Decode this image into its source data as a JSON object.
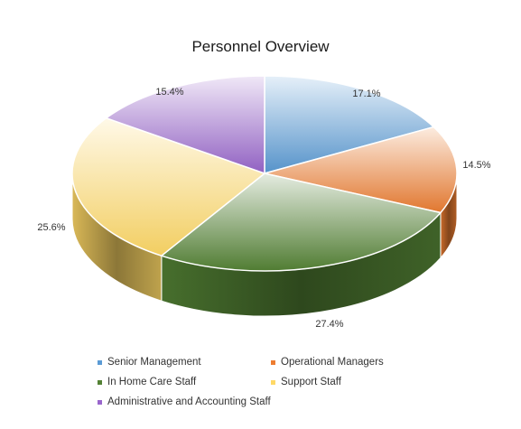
{
  "chart_data": {
    "type": "pie",
    "title": "Personnel Overview",
    "categories": [
      "Senior Management",
      "Operational Managers",
      "In Home Care Staff",
      "Support Staff",
      "Administrative and Accounting Staff"
    ],
    "values": [
      17.1,
      14.5,
      27.4,
      25.6,
      15.4
    ],
    "labels": [
      "17.1%",
      "14.5%",
      "27.4%",
      "25.6%",
      "15.4%"
    ],
    "legend_position": "bottom",
    "legend_order": [
      "Senior Management",
      "Operational Managers",
      "In Home Care Staff",
      "Support Staff",
      "Administrative and Accounting Staff"
    ]
  },
  "colors": {
    "Senior Management": "#5b9bd5",
    "Operational Managers": "#ed7d31",
    "In Home Care Staff": "#548235",
    "Support Staff": "#ffd966",
    "Administrative and Accounting Staff": "#9966cc"
  }
}
